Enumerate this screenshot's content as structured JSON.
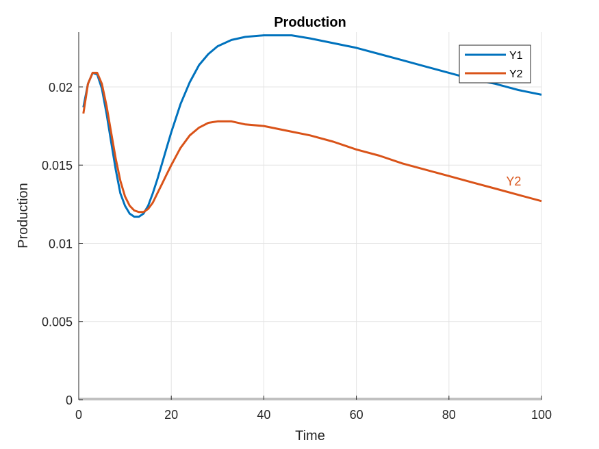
{
  "chart_data": {
    "type": "line",
    "title": "Production",
    "xlabel": "Time",
    "ylabel": "Production",
    "xlim": [
      0,
      100
    ],
    "ylim": [
      0,
      0.0235
    ],
    "xticks": [
      0,
      20,
      40,
      60,
      80,
      100
    ],
    "xtick_labels": [
      "0",
      "20",
      "40",
      "60",
      "80",
      "100"
    ],
    "yticks": [
      0,
      0.005,
      0.01,
      0.015,
      0.02
    ],
    "ytick_labels": [
      "0",
      "0.005",
      "0.01",
      "0.015",
      "0.02"
    ],
    "grid": true,
    "legend": {
      "position": "top-right",
      "entries": [
        "Y1",
        "Y2"
      ]
    },
    "series": [
      {
        "name": "Y1",
        "color": "#0072BD",
        "points": [
          [
            1,
            0.0187
          ],
          [
            2,
            0.0202
          ],
          [
            3,
            0.0209
          ],
          [
            4,
            0.0208
          ],
          [
            5,
            0.0199
          ],
          [
            6,
            0.0183
          ],
          [
            7,
            0.0165
          ],
          [
            8,
            0.0147
          ],
          [
            9,
            0.0132
          ],
          [
            10,
            0.0124
          ],
          [
            11,
            0.0119
          ],
          [
            12,
            0.0117
          ],
          [
            13,
            0.0117
          ],
          [
            14,
            0.0119
          ],
          [
            15,
            0.0124
          ],
          [
            16,
            0.0132
          ],
          [
            17,
            0.0141
          ],
          [
            18,
            0.0151
          ],
          [
            19,
            0.0161
          ],
          [
            20,
            0.0171
          ],
          [
            22,
            0.0189
          ],
          [
            24,
            0.0203
          ],
          [
            26,
            0.0214
          ],
          [
            28,
            0.0221
          ],
          [
            30,
            0.0226
          ],
          [
            33,
            0.023
          ],
          [
            36,
            0.0232
          ],
          [
            40,
            0.0233
          ],
          [
            43,
            0.0233
          ],
          [
            46,
            0.0233
          ],
          [
            50,
            0.0231
          ],
          [
            55,
            0.0228
          ],
          [
            60,
            0.0225
          ],
          [
            65,
            0.0221
          ],
          [
            70,
            0.0217
          ],
          [
            75,
            0.0213
          ],
          [
            80,
            0.0209
          ],
          [
            85,
            0.0205
          ],
          [
            90,
            0.0202
          ],
          [
            95,
            0.0198
          ],
          [
            100,
            0.0195
          ]
        ]
      },
      {
        "name": "Y2",
        "color": "#D95319",
        "points": [
          [
            1,
            0.0183
          ],
          [
            2,
            0.0202
          ],
          [
            3,
            0.0209
          ],
          [
            4,
            0.0209
          ],
          [
            5,
            0.0202
          ],
          [
            6,
            0.0188
          ],
          [
            7,
            0.0171
          ],
          [
            8,
            0.0154
          ],
          [
            9,
            0.014
          ],
          [
            10,
            0.013
          ],
          [
            11,
            0.0124
          ],
          [
            12,
            0.0121
          ],
          [
            13,
            0.012
          ],
          [
            14,
            0.012
          ],
          [
            15,
            0.0122
          ],
          [
            16,
            0.0126
          ],
          [
            17,
            0.0132
          ],
          [
            18,
            0.0138
          ],
          [
            19,
            0.0144
          ],
          [
            20,
            0.015
          ],
          [
            22,
            0.0161
          ],
          [
            24,
            0.0169
          ],
          [
            26,
            0.0174
          ],
          [
            28,
            0.0177
          ],
          [
            30,
            0.0178
          ],
          [
            33,
            0.0178
          ],
          [
            36,
            0.0176
          ],
          [
            40,
            0.0175
          ],
          [
            45,
            0.0172
          ],
          [
            50,
            0.0169
          ],
          [
            55,
            0.0165
          ],
          [
            60,
            0.016
          ],
          [
            65,
            0.0156
          ],
          [
            70,
            0.0151
          ],
          [
            75,
            0.0147
          ],
          [
            80,
            0.0143
          ],
          [
            85,
            0.0139
          ],
          [
            90,
            0.0135
          ],
          [
            95,
            0.0131
          ],
          [
            100,
            0.0127
          ]
        ]
      }
    ],
    "annotations": [
      {
        "text": "Y2",
        "x": 94,
        "y": 0.0137,
        "color": "#D95319"
      }
    ]
  }
}
